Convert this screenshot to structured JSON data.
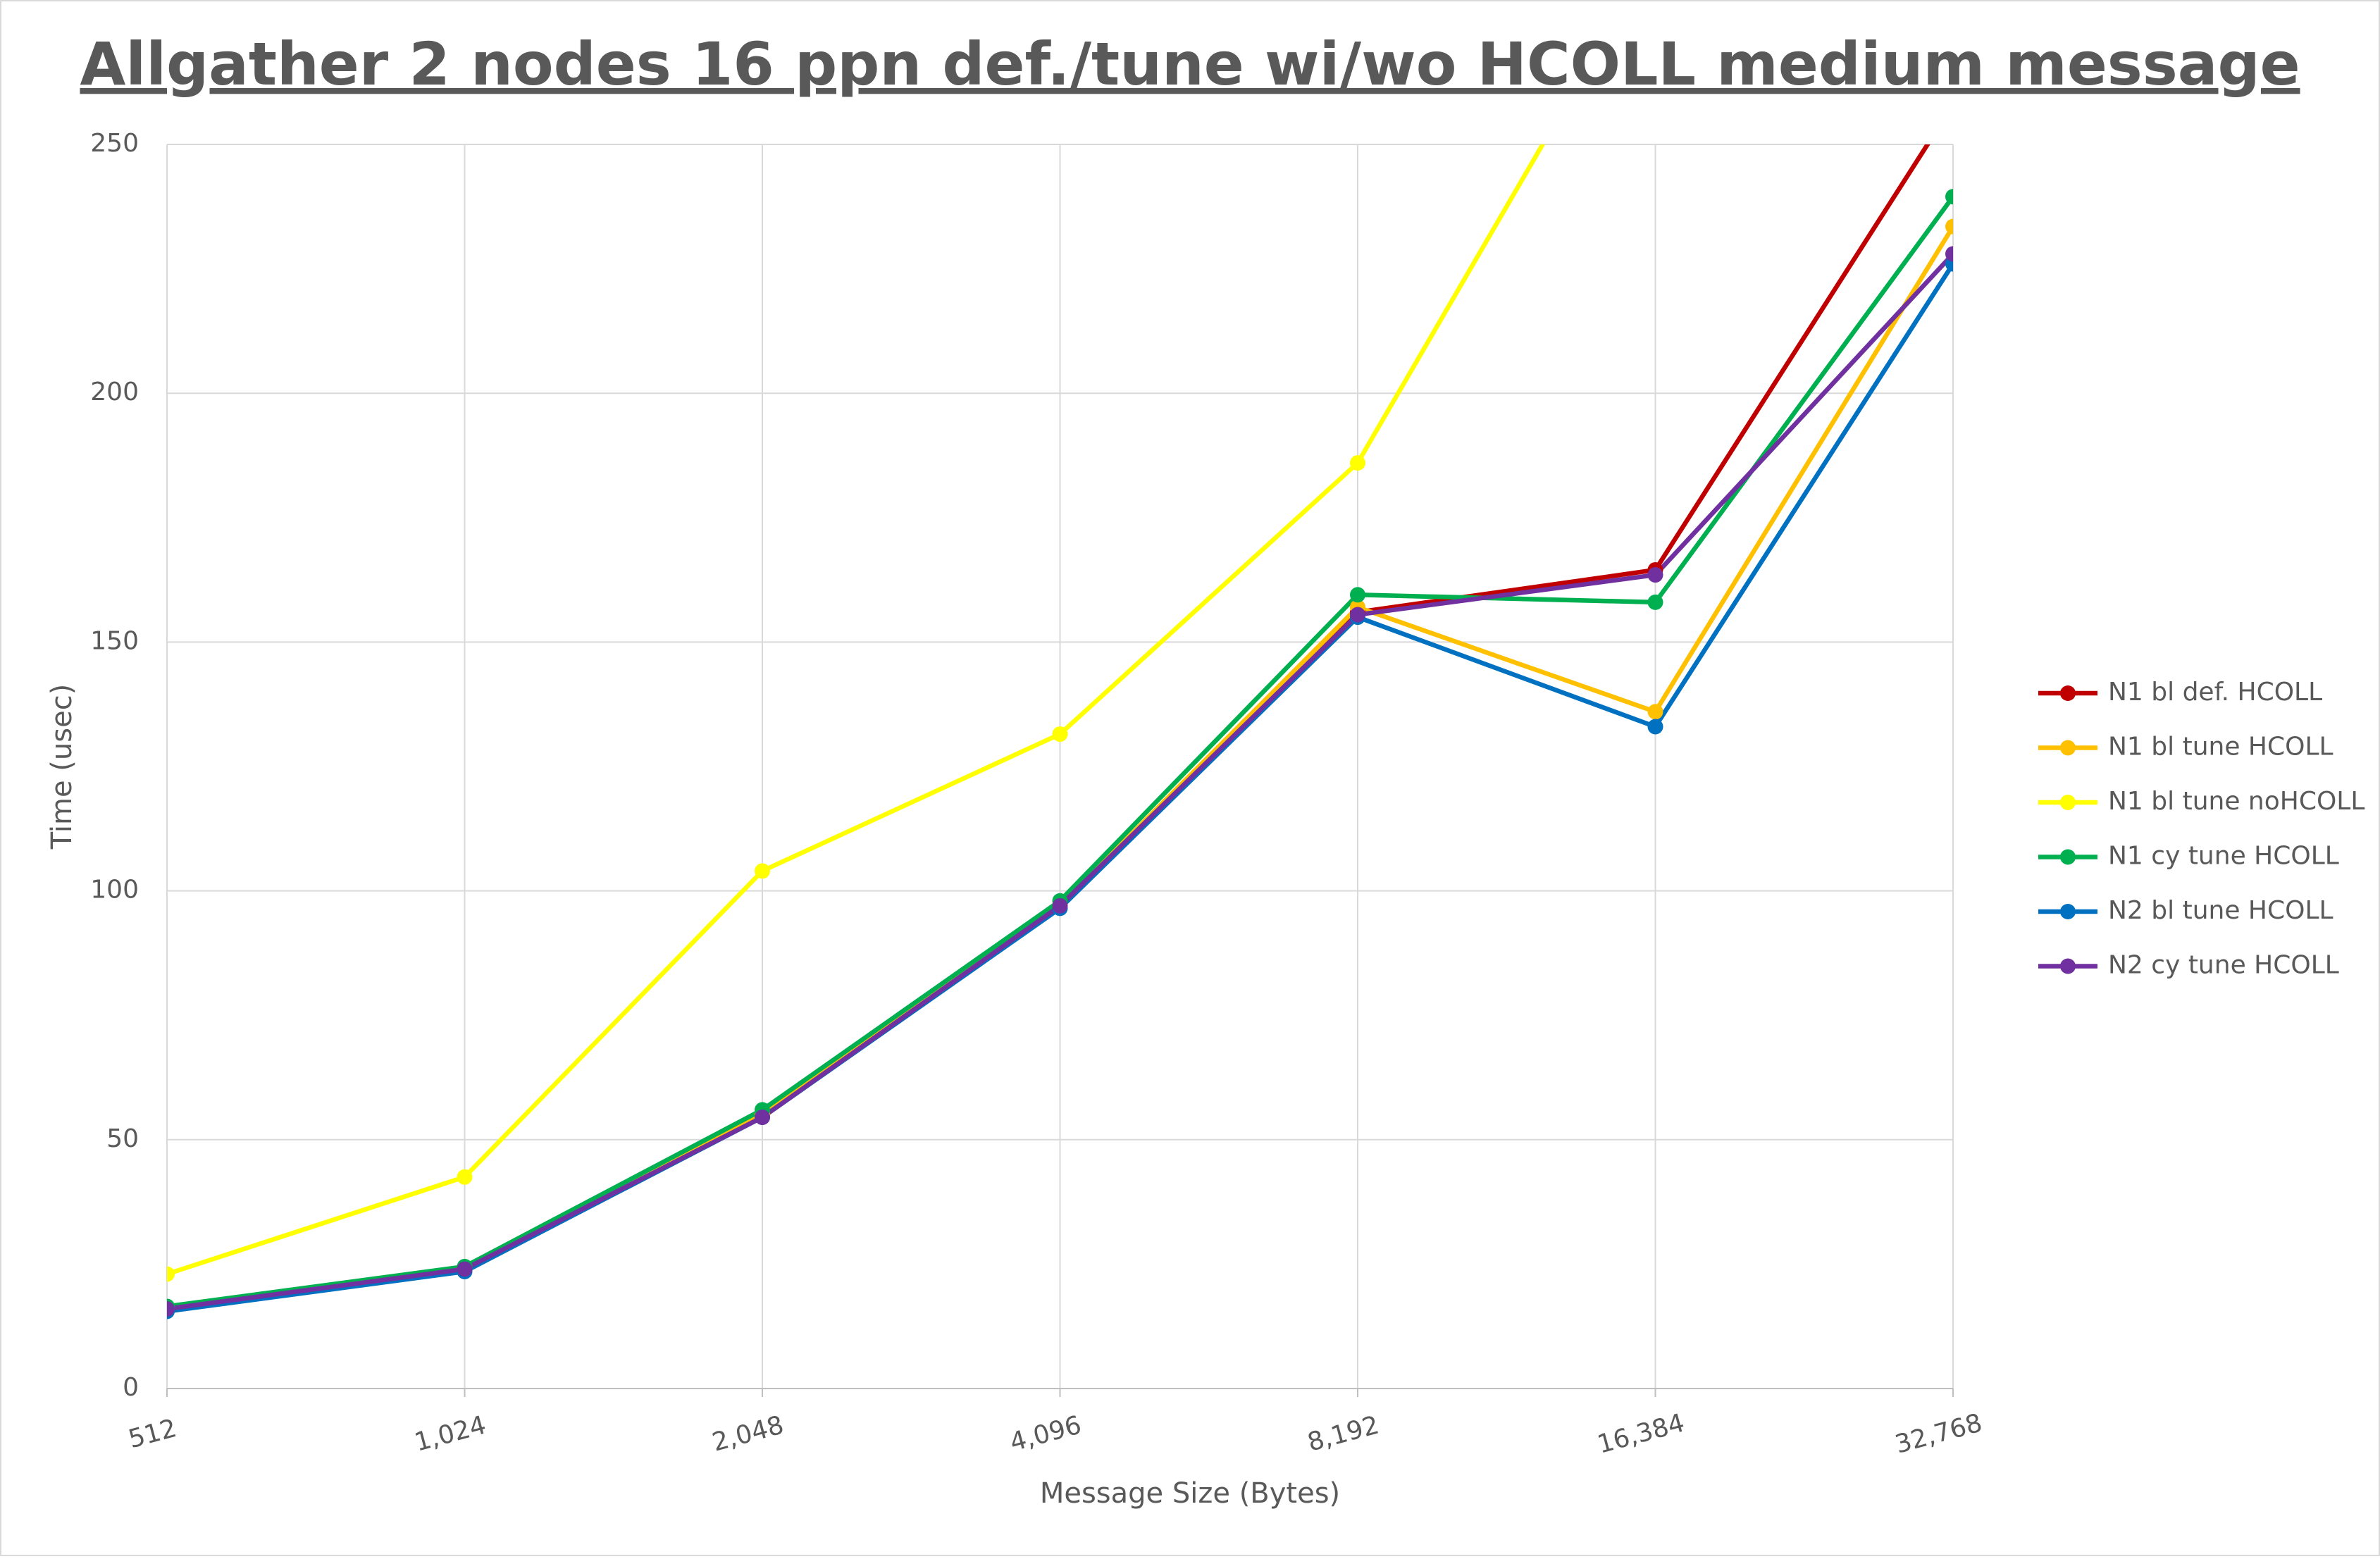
{
  "chart_data": {
    "type": "line",
    "title": "Allgather 2 nodes 16 ppn def./tune wi/wo HCOLL medium message",
    "x_label": "Message Size (Bytes)",
    "y_label": "Time (usec)",
    "categories": [
      "512",
      "1,024",
      "2,048",
      "4,096",
      "8,192",
      "16,384",
      "32,768"
    ],
    "ylim": [
      0,
      250
    ],
    "yticks": [
      0,
      50,
      100,
      150,
      200,
      250
    ],
    "grid": true,
    "legend": "right",
    "series": [
      {
        "name": "N1 bl def. HCOLL",
        "color": "#c00000",
        "values": [
          16,
          24,
          55,
          97,
          156,
          164.5,
          258
        ]
      },
      {
        "name": "N1 bl tune HCOLL",
        "color": "#ffc000",
        "values": [
          16,
          24,
          55,
          97,
          157,
          136,
          233.5
        ]
      },
      {
        "name": "N1 bl tune noHCOLL",
        "color": "#ffff00",
        "values": [
          23,
          42.5,
          104,
          131.5,
          186,
          289,
          null
        ]
      },
      {
        "name": "N1 cy tune HCOLL",
        "color": "#00b050",
        "values": [
          16.5,
          24.5,
          56,
          98,
          159.5,
          158,
          239.5
        ]
      },
      {
        "name": "N2 bl tune HCOLL",
        "color": "#0070c0",
        "values": [
          15.5,
          23.5,
          54.5,
          96.5,
          155,
          133,
          226
        ]
      },
      {
        "name": "N2 cy tune HCOLL",
        "color": "#7030a0",
        "values": [
          16,
          24,
          54.5,
          97,
          155.5,
          163.5,
          228
        ]
      }
    ]
  }
}
